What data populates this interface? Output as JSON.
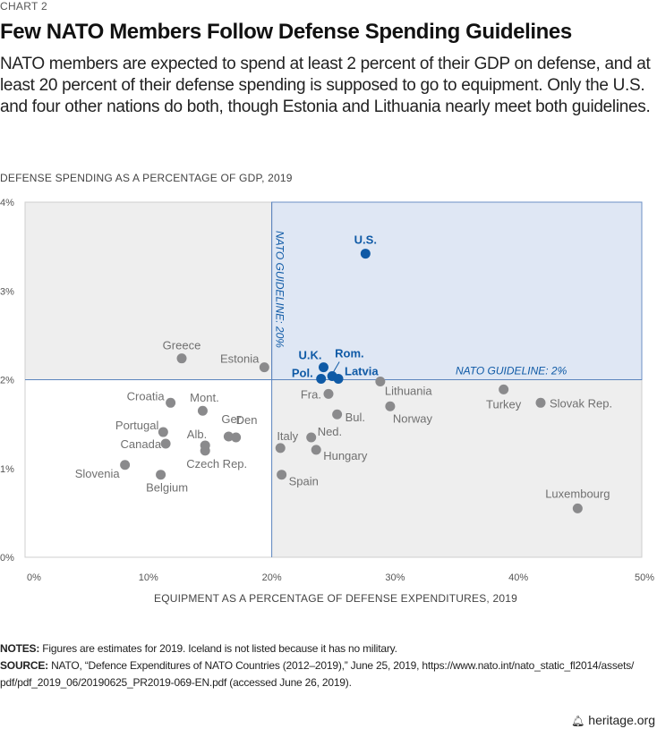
{
  "header": {
    "kicker": "CHART 2",
    "title": "Few NATO Members Follow Defense Spending Guidelines",
    "subtitle": "NATO members are expected to spend at least 2 percent of their GDP on defense, and at least 20 percent of their defense spending is supposed to go to equipment. Only the U.S. and four other nations do both, though Estonia and Lithuania nearly meet both guidelines."
  },
  "notes": {
    "notes_label": "NOTES:",
    "notes_text": " Figures are estimates for 2019. Iceland is not listed because it has no military.",
    "source_label": "SOURCE:",
    "source_text": " NATO, “Defence Expenditures of NATO Countries (2012–2019),” June 25, 2019, https://www.nato.int/nato_static_fl2014/assets/ pdf/pdf_2019_06/20190625_PR2019-069-EN.pdf (accessed June 26, 2019)."
  },
  "footer": {
    "brand": "heritage.org",
    "brand_icon": "bell-icon"
  },
  "colors": {
    "highlight": "#0f5aa6",
    "highlight_fill": "#dfe7f4",
    "normal_point": "#8a8a8c",
    "normal_label": "#707070",
    "plot_bg": "#eeeeee"
  },
  "chart_data": {
    "type": "scatter",
    "title": "Few NATO Members Follow Defense Spending Guidelines",
    "xlabel": "EQUIPMENT AS A PERCENTAGE OF DEFENSE EXPENDITURES, 2019",
    "ylabel": "DEFENSE SPENDING AS A PERCENTAGE OF GDP, 2019",
    "xlim": [
      0,
      50
    ],
    "ylim": [
      0,
      4
    ],
    "x_ticks": [
      0,
      10,
      20,
      30,
      40,
      50
    ],
    "x_tick_labels": [
      "0%",
      "10%",
      "20%",
      "30%",
      "40%",
      "50%"
    ],
    "y_ticks": [
      0,
      1,
      2,
      3,
      4
    ],
    "y_tick_labels": [
      "0%",
      "1%",
      "2%",
      "3%",
      "4%"
    ],
    "grid": false,
    "guidelines": [
      {
        "axis": "x",
        "value": 20,
        "label": "NATO GUIDELINE: 20%"
      },
      {
        "axis": "y",
        "value": 2,
        "label": "NATO GUIDELINE: 2%"
      }
    ],
    "points": [
      {
        "label": "U.S.",
        "x": 27.6,
        "y": 3.42,
        "highlight": true,
        "label_pos": "top"
      },
      {
        "label": "U.K.",
        "x": 24.2,
        "y": 2.14,
        "highlight": true,
        "label_pos": "top-left"
      },
      {
        "label": "Pol.",
        "x": 24.0,
        "y": 2.01,
        "highlight": true,
        "label_pos": "left"
      },
      {
        "label": "Rom.",
        "x": 24.9,
        "y": 2.04,
        "highlight": true,
        "label_pos": "top-right-leader"
      },
      {
        "label": "Latvia",
        "x": 25.4,
        "y": 2.01,
        "highlight": true,
        "label_pos": "right"
      },
      {
        "label": "Greece",
        "x": 12.7,
        "y": 2.24,
        "highlight": false,
        "label_pos": "top"
      },
      {
        "label": "Estonia",
        "x": 19.4,
        "y": 2.14,
        "highlight": false,
        "label_pos": "left"
      },
      {
        "label": "Lithuania",
        "x": 28.8,
        "y": 1.98,
        "highlight": false,
        "label_pos": "bottom-right"
      },
      {
        "label": "Fra.",
        "x": 24.6,
        "y": 1.84,
        "highlight": false,
        "label_pos": "left"
      },
      {
        "label": "Bul.",
        "x": 25.3,
        "y": 1.61,
        "highlight": false,
        "label_pos": "right"
      },
      {
        "label": "Norway",
        "x": 29.6,
        "y": 1.7,
        "highlight": false,
        "label_pos": "bottom-right"
      },
      {
        "label": "Turkey",
        "x": 38.8,
        "y": 1.89,
        "highlight": false,
        "label_pos": "bottom"
      },
      {
        "label": "Slovak Rep.",
        "x": 41.8,
        "y": 1.74,
        "highlight": false,
        "label_pos": "right"
      },
      {
        "label": "Ned.",
        "x": 23.2,
        "y": 1.35,
        "highlight": false,
        "label_pos": "top-right"
      },
      {
        "label": "Italy",
        "x": 20.7,
        "y": 1.23,
        "highlight": false,
        "label_pos": "top"
      },
      {
        "label": "Hungary",
        "x": 23.6,
        "y": 1.21,
        "highlight": false,
        "label_pos": "bottom-right"
      },
      {
        "label": "Spain",
        "x": 20.8,
        "y": 0.93,
        "highlight": false,
        "label_pos": "bottom-right"
      },
      {
        "label": "Luxembourg",
        "x": 44.8,
        "y": 0.55,
        "highlight": false,
        "label_pos": "top"
      },
      {
        "label": "Croatia",
        "x": 11.8,
        "y": 1.74,
        "highlight": false,
        "label_pos": "left"
      },
      {
        "label": "Mont.",
        "x": 14.4,
        "y": 1.65,
        "highlight": false,
        "label_pos": "top"
      },
      {
        "label": "Portugal",
        "x": 11.2,
        "y": 1.41,
        "highlight": false,
        "label_pos": "left"
      },
      {
        "label": "Canada",
        "x": 11.4,
        "y": 1.28,
        "highlight": false,
        "label_pos": "left"
      },
      {
        "label": "Alb.",
        "x": 14.6,
        "y": 1.26,
        "highlight": false,
        "label_pos": "top-left"
      },
      {
        "label": "Czech Rep.",
        "x": 14.6,
        "y": 1.2,
        "highlight": false,
        "label_pos": "bottom"
      },
      {
        "label": "Ger.",
        "x": 16.5,
        "y": 1.36,
        "highlight": false,
        "label_pos": "top"
      },
      {
        "label": "Den",
        "x": 17.1,
        "y": 1.35,
        "highlight": false,
        "label_pos": "top-right"
      },
      {
        "label": "Slovenia",
        "x": 8.1,
        "y": 1.04,
        "highlight": false,
        "label_pos": "bottom-left"
      },
      {
        "label": "Belgium",
        "x": 11.0,
        "y": 0.93,
        "highlight": false,
        "label_pos": "bottom"
      }
    ]
  }
}
